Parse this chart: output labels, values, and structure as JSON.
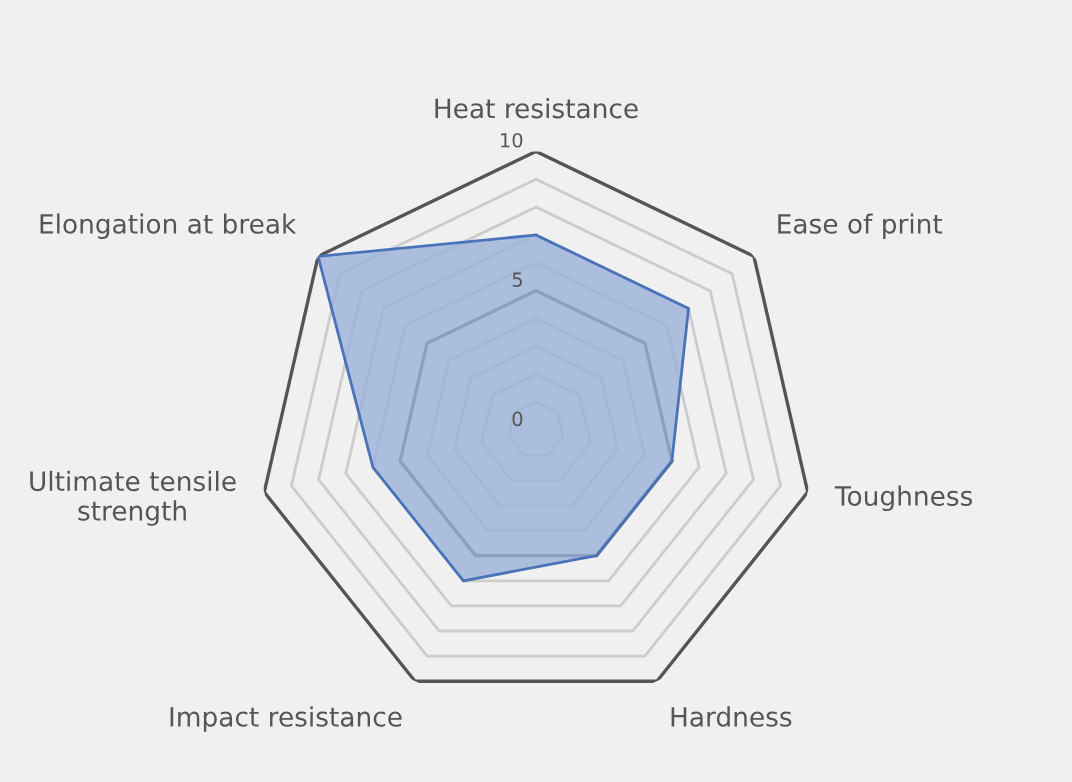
{
  "chart_data": {
    "type": "radar",
    "categories": [
      "Heat resistance",
      "Ease of print",
      "Toughness",
      "Hardness",
      "Impact resistance",
      "Ultimate tensile\nstrength",
      "Elongation at break"
    ],
    "series": [
      {
        "color": "#4a73b8",
        "values": [
          7,
          7,
          5,
          5,
          6,
          6,
          10
        ]
      }
    ],
    "ylim": [
      0,
      10
    ],
    "yticks": [
      0,
      5,
      10
    ],
    "grid": true
  }
}
